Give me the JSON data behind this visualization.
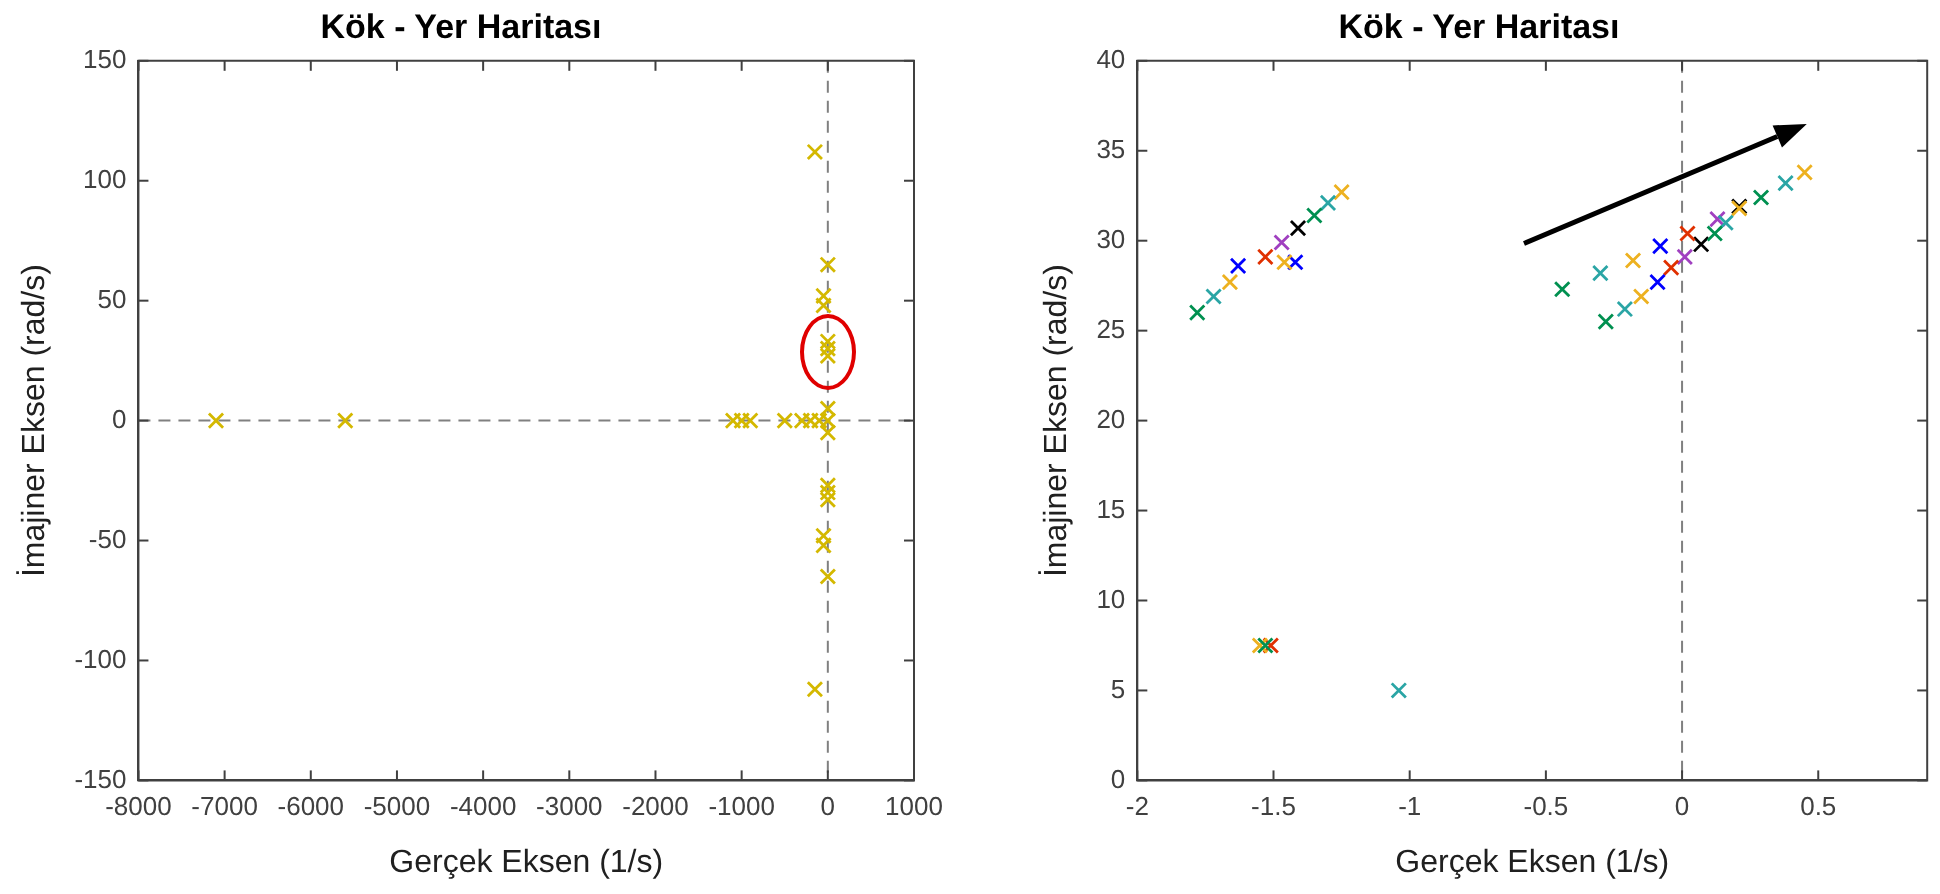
{
  "chart_data": [
    {
      "type": "scatter",
      "title": "Kök - Yer Haritası",
      "xlabel": "Gerçek Eksen (1/s)",
      "ylabel": "İmajiner Eksen (rad/s)",
      "marker": "cross",
      "legend": false,
      "grid": false,
      "xlim": [
        -8000,
        1000
      ],
      "xticks": [
        -8000,
        -7000,
        -6000,
        -5000,
        -4000,
        -3000,
        -2000,
        -1000,
        0,
        1000
      ],
      "ylim": [
        -150,
        150
      ],
      "yticks": [
        -150,
        -100,
        -50,
        0,
        50,
        100,
        150
      ],
      "ref_lines": [
        {
          "axis": "x",
          "value": 0,
          "line_style": "dashed",
          "color": "#808080"
        },
        {
          "axis": "y",
          "value": 0,
          "line_style": "dashed",
          "color": "#808080"
        }
      ],
      "series": [
        {
          "color": "#d4b800",
          "x": [
            -7100,
            -5600,
            -1100,
            -1000,
            -900,
            -500,
            -300,
            -200,
            -100,
            0,
            0,
            0,
            -150,
            -150,
            0,
            0,
            -50,
            -50,
            -50,
            -50,
            0,
            0,
            0,
            0,
            0,
            0
          ],
          "values": [
            0,
            0,
            0,
            0,
            0,
            0,
            0,
            0,
            0,
            0,
            5,
            -5,
            112,
            -112,
            65,
            -65,
            52,
            48,
            -48,
            -52,
            30,
            27,
            33,
            -30,
            -27,
            -33
          ]
        }
      ]
    },
    {
      "type": "scatter",
      "title": "Kök - Yer Haritası",
      "xlabel": "Gerçek Eksen (1/s)",
      "ylabel": "İmajiner Eksen (rad/s)",
      "marker": "cross",
      "legend": false,
      "grid": false,
      "xlim": [
        -2,
        0.9
      ],
      "xticks": [
        -2,
        -1.5,
        -1,
        -0.5,
        0,
        0.5
      ],
      "ylim": [
        0,
        40
      ],
      "yticks": [
        0,
        5,
        10,
        15,
        20,
        25,
        30,
        35,
        40
      ],
      "ref_lines": [
        {
          "axis": "x",
          "value": 0,
          "line_style": "dashed",
          "color": "#808080"
        }
      ],
      "series": [
        {
          "color": "#009050",
          "x": [
            -1.78,
            -1.35,
            -0.44,
            -0.28,
            0.12,
            0.29,
            -1.53
          ],
          "values": [
            26.0,
            31.4,
            27.3,
            25.5,
            30.4,
            32.4,
            7.5
          ]
        },
        {
          "color": "#2aa5a5",
          "x": [
            -1.72,
            -1.3,
            -0.3,
            -0.21,
            0.16,
            0.38,
            -1.04
          ],
          "values": [
            26.9,
            32.1,
            28.2,
            26.2,
            31.0,
            33.2,
            5.0
          ]
        },
        {
          "color": "#edb120",
          "x": [
            -1.66,
            -1.46,
            -1.25,
            -0.18,
            -0.15,
            0.21,
            0.45,
            -1.55
          ],
          "values": [
            27.7,
            28.8,
            32.7,
            28.9,
            26.9,
            31.8,
            33.8,
            7.5
          ]
        },
        {
          "color": "#0000ff",
          "x": [
            -1.63,
            -1.42,
            -0.08,
            -0.09
          ],
          "values": [
            28.6,
            28.8,
            29.7,
            27.7
          ]
        },
        {
          "color": "#e03000",
          "x": [
            -1.53,
            0.02,
            -0.04,
            -1.51
          ],
          "values": [
            29.1,
            30.4,
            28.5,
            7.5
          ]
        },
        {
          "color": "#a040c0",
          "x": [
            -1.47,
            0.01,
            0.13
          ],
          "values": [
            29.9,
            29.1,
            31.2
          ]
        },
        {
          "color": "#000000",
          "x": [
            -1.41,
            0.07,
            0.21
          ],
          "values": [
            30.7,
            29.8,
            31.9
          ]
        }
      ]
    }
  ]
}
